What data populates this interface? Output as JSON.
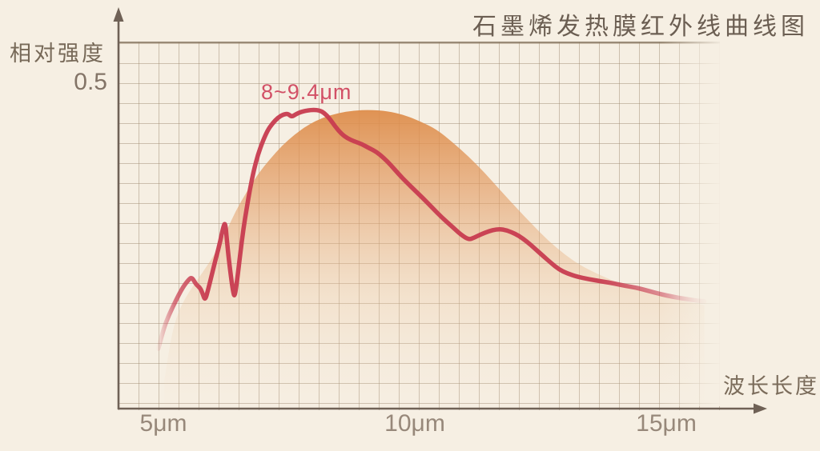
{
  "title": "石墨烯发热膜红外线曲线图",
  "y_axis": {
    "label": "相对强度",
    "ref_value": "0.5"
  },
  "x_axis": {
    "label": "波长长度",
    "ticks": [
      "5μm",
      "10μm",
      "15μm"
    ]
  },
  "annotation": {
    "text": "8~9.4μm"
  },
  "colors": {
    "background": "#f6efe3",
    "curve": "#c83c50",
    "area": "#dd8a46",
    "annotation_text": "#d25066",
    "axis": "#6f6156",
    "grid_line": "#9a856a",
    "label_text": "#776958",
    "tick_text": "#97887a"
  },
  "chart_data": {
    "type": "line",
    "title": "石墨烯发热膜红外线曲线图",
    "xlabel": "波长长度",
    "ylabel": "相对强度",
    "x_tick_labels": [
      "5μm",
      "10μm",
      "15μm"
    ],
    "x_tick_values": [
      5,
      10,
      15
    ],
    "y_reference": 0.5,
    "xlim": [
      4.5,
      16.9
    ],
    "ylim": [
      0,
      0.565
    ],
    "grid": true,
    "legend": "none",
    "peak_annotation": "8~9.4μm",
    "series": [
      {
        "id": "red-curve",
        "type": "line",
        "color": "#c83c50",
        "x": [
          4.9,
          5.0,
          5.11,
          5.24,
          5.38,
          5.51,
          5.57,
          5.65,
          5.73,
          5.78,
          5.83,
          5.89,
          5.97,
          6.05,
          6.13,
          6.19,
          6.23,
          6.26,
          6.29,
          6.34,
          6.39,
          6.42,
          6.47,
          6.53,
          6.59,
          6.66,
          6.72,
          6.8,
          6.88,
          6.98,
          7.07,
          7.17,
          7.28,
          7.39,
          7.48,
          7.55,
          7.63,
          7.74,
          7.87,
          7.99,
          8.11,
          8.2,
          8.3,
          8.41,
          8.54,
          8.66,
          8.81,
          8.95,
          9.09,
          9.24,
          9.38,
          9.52,
          9.68,
          9.84,
          10.0,
          10.16,
          10.35,
          10.54,
          10.73,
          10.91,
          11.07,
          11.18,
          11.31,
          11.47,
          11.62,
          11.75,
          11.91,
          12.07,
          12.23,
          12.39,
          12.55,
          12.71,
          12.87,
          13.03,
          13.22,
          13.46,
          13.69,
          13.93,
          14.17,
          14.41,
          14.65,
          14.89,
          15.13,
          15.37,
          15.61,
          15.76
        ],
        "y": [
          0.091,
          0.121,
          0.143,
          0.164,
          0.185,
          0.198,
          0.201,
          0.19,
          0.185,
          0.176,
          0.165,
          0.182,
          0.207,
          0.232,
          0.256,
          0.278,
          0.286,
          0.261,
          0.237,
          0.204,
          0.177,
          0.171,
          0.198,
          0.238,
          0.275,
          0.308,
          0.336,
          0.366,
          0.39,
          0.411,
          0.427,
          0.438,
          0.447,
          0.452,
          0.453,
          0.448,
          0.452,
          0.456,
          0.458,
          0.459,
          0.458,
          0.454,
          0.446,
          0.434,
          0.422,
          0.415,
          0.41,
          0.406,
          0.4,
          0.394,
          0.385,
          0.374,
          0.36,
          0.347,
          0.335,
          0.323,
          0.308,
          0.293,
          0.28,
          0.267,
          0.259,
          0.262,
          0.267,
          0.272,
          0.275,
          0.275,
          0.271,
          0.265,
          0.256,
          0.245,
          0.234,
          0.223,
          0.213,
          0.207,
          0.202,
          0.198,
          0.195,
          0.192,
          0.188,
          0.185,
          0.18,
          0.175,
          0.171,
          0.168,
          0.165,
          0.164
        ]
      },
      {
        "id": "orange-area",
        "type": "area",
        "color": "#dd8a46",
        "x": [
          5.02,
          5.13,
          5.25,
          5.41,
          5.61,
          5.81,
          6.05,
          6.26,
          6.45,
          6.66,
          6.88,
          7.12,
          7.36,
          7.61,
          7.88,
          8.17,
          8.47,
          8.79,
          9.11,
          9.46,
          9.79,
          10.11,
          10.43,
          10.75,
          11.07,
          11.39,
          11.7,
          12.02,
          12.34,
          12.66,
          12.98,
          13.3,
          13.61,
          13.93,
          14.25,
          14.57,
          14.97,
          15.37,
          15.76
        ],
        "y": [
          0.043,
          0.099,
          0.138,
          0.166,
          0.19,
          0.212,
          0.24,
          0.273,
          0.305,
          0.333,
          0.36,
          0.383,
          0.404,
          0.421,
          0.436,
          0.447,
          0.454,
          0.458,
          0.459,
          0.457,
          0.451,
          0.441,
          0.429,
          0.409,
          0.387,
          0.362,
          0.335,
          0.308,
          0.282,
          0.257,
          0.236,
          0.219,
          0.207,
          0.196,
          0.187,
          0.18,
          0.171,
          0.164,
          0.158
        ]
      }
    ]
  }
}
